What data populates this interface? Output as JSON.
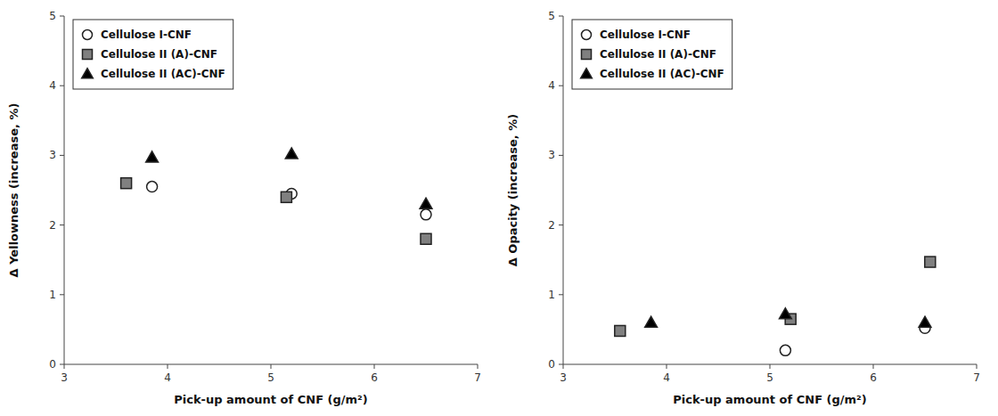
{
  "chart_data": [
    {
      "type": "scatter",
      "xlabel": "Pick-up amount of CNF (g/m²)",
      "ylabel": "Δ Yellowness (increase, %)",
      "xlim": [
        3,
        7
      ],
      "ylim": [
        0,
        5
      ],
      "xticks": [
        3,
        4,
        5,
        6,
        7
      ],
      "yticks": [
        0,
        1,
        2,
        3,
        4,
        5
      ],
      "grid": false,
      "legend": "upper left",
      "series": [
        {
          "name": "Cellulose I-CNF",
          "marker": "circle",
          "color": "white",
          "x": [
            3.85,
            5.2,
            6.5
          ],
          "values": [
            2.55,
            2.45,
            2.15
          ]
        },
        {
          "name": "Cellulose II (A)-CNF",
          "marker": "square",
          "color": "#808080",
          "x": [
            3.6,
            5.15,
            6.5
          ],
          "values": [
            2.6,
            2.4,
            1.8
          ]
        },
        {
          "name": "Cellulose II (AC)-CNF",
          "marker": "triangle",
          "color": "black",
          "x": [
            3.85,
            5.2,
            6.5
          ],
          "values": [
            2.97,
            3.02,
            2.3
          ]
        }
      ]
    },
    {
      "type": "scatter",
      "xlabel": "Pick-up amount of CNF (g/m²)",
      "ylabel": "Δ Opacity (increase, %)",
      "xlim": [
        3,
        7
      ],
      "ylim": [
        0,
        5
      ],
      "xticks": [
        3,
        4,
        5,
        6,
        7
      ],
      "yticks": [
        0,
        1,
        2,
        3,
        4,
        5
      ],
      "grid": false,
      "legend": "upper left",
      "series": [
        {
          "name": "Cellulose I-CNF",
          "marker": "circle",
          "color": "white",
          "x": [
            5.15,
            6.5
          ],
          "values": [
            0.2,
            0.52
          ]
        },
        {
          "name": "Cellulose II (A)-CNF",
          "marker": "square",
          "color": "#808080",
          "x": [
            3.55,
            5.2,
            6.55
          ],
          "values": [
            0.48,
            0.65,
            1.47
          ]
        },
        {
          "name": "Cellulose II (AC)-CNF",
          "marker": "triangle",
          "color": "black",
          "x": [
            3.85,
            5.15,
            6.5
          ],
          "values": [
            0.6,
            0.72,
            0.6
          ]
        }
      ]
    }
  ]
}
